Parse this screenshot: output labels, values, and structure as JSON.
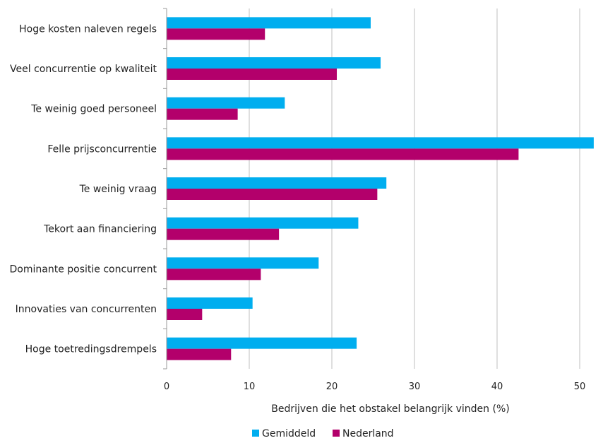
{
  "chart_data": {
    "type": "bar",
    "orientation": "horizontal",
    "title": "",
    "categories": [
      "Hoge kosten naleven regels",
      "Veel concurrentie op kwaliteit",
      "Te weinig goed personeel",
      "Felle prijsconcurrentie",
      "Te weinig vraag",
      "Tekort aan financiering",
      "Dominante positie concurrent",
      "Innovaties van concurrenten",
      "Hoge toetredingsdrempels"
    ],
    "series": [
      {
        "name": "Gemiddeld",
        "color": "#00aeef",
        "values": [
          24.7,
          25.9,
          14.3,
          51.7,
          26.6,
          23.2,
          18.4,
          10.4,
          23.0
        ]
      },
      {
        "name": "Nederland",
        "color": "#b3006b",
        "values": [
          11.9,
          20.6,
          8.6,
          42.6,
          25.5,
          13.6,
          11.4,
          4.3,
          7.8
        ]
      }
    ],
    "xlabel": "Bedrijven die het obstakel belangrijk vinden (%)",
    "ylabel": "",
    "xlim": [
      0,
      55
    ],
    "xticks": [
      "0",
      "10",
      "20",
      "30",
      "40",
      "50"
    ],
    "grid": true,
    "legend_position": "bottom"
  }
}
